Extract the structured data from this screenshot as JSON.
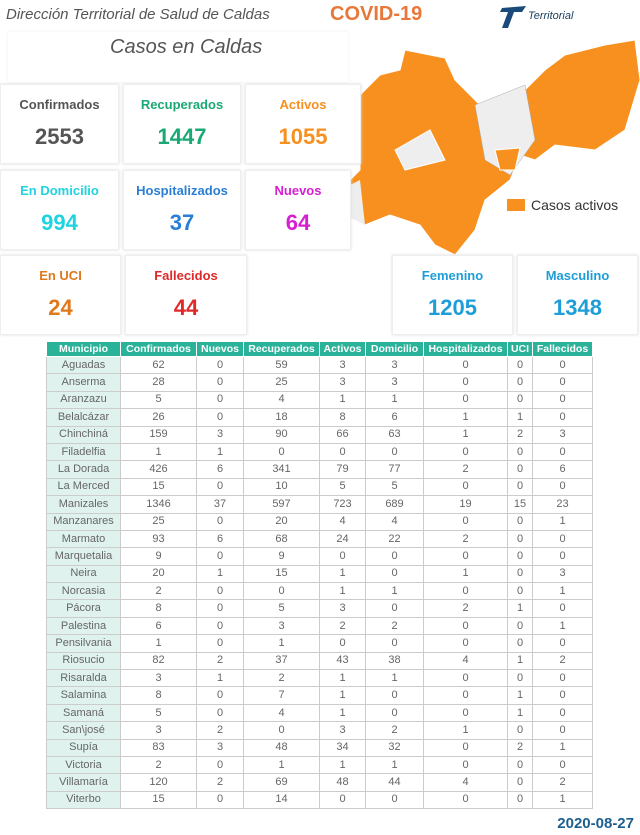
{
  "header": {
    "title": "Dirección Territorial de Salud de Caldas",
    "covid": "COVID-19",
    "logo_text": "Territorial"
  },
  "panel_title": "Casos en Caldas",
  "cards": {
    "confirmados": {
      "label": "Confirmados",
      "value": "2553",
      "color": "#555555"
    },
    "recuperados": {
      "label": "Recuperados",
      "value": "1447",
      "color": "#1aa874"
    },
    "activos": {
      "label": "Activos",
      "value": "1055",
      "color": "#f7901e"
    },
    "domicilio": {
      "label": "En Domicilio",
      "value": "994",
      "color": "#1fd3e0"
    },
    "hospitalizados": {
      "label": "Hospitalizados",
      "value": "37",
      "color": "#2a7fd4"
    },
    "nuevos": {
      "label": "Nuevos",
      "value": "64",
      "color": "#d61fd1"
    },
    "uci": {
      "label": "En UCI",
      "value": "24",
      "color": "#e0781c"
    },
    "fallecidos": {
      "label": "Fallecidos",
      "value": "44",
      "color": "#e02a2a"
    },
    "femenino": {
      "label": "Femenino",
      "value": "1205",
      "color": "#1e9ed8"
    },
    "masculino": {
      "label": "Masculino",
      "value": "1348",
      "color": "#1e9ed8"
    }
  },
  "map_legend": "Casos activos",
  "table": {
    "headers": [
      "Municipio",
      "Confirmados",
      "Nuevos",
      "Recuperados",
      "Activos",
      "Domicilio",
      "Hospitalizados",
      "UCI",
      "Fallecidos"
    ],
    "rows": [
      [
        "Aguadas",
        "62",
        "0",
        "59",
        "3",
        "3",
        "0",
        "0",
        "0"
      ],
      [
        "Anserma",
        "28",
        "0",
        "25",
        "3",
        "3",
        "0",
        "0",
        "0"
      ],
      [
        "Aranzazu",
        "5",
        "0",
        "4",
        "1",
        "1",
        "0",
        "0",
        "0"
      ],
      [
        "Belalcázar",
        "26",
        "0",
        "18",
        "8",
        "6",
        "1",
        "1",
        "0"
      ],
      [
        "Chinchiná",
        "159",
        "3",
        "90",
        "66",
        "63",
        "1",
        "2",
        "3"
      ],
      [
        "Filadelfia",
        "1",
        "1",
        "0",
        "0",
        "0",
        "0",
        "0",
        "0"
      ],
      [
        "La Dorada",
        "426",
        "6",
        "341",
        "79",
        "77",
        "2",
        "0",
        "6"
      ],
      [
        "La Merced",
        "15",
        "0",
        "10",
        "5",
        "5",
        "0",
        "0",
        "0"
      ],
      [
        "Manizales",
        "1346",
        "37",
        "597",
        "723",
        "689",
        "19",
        "15",
        "23"
      ],
      [
        "Manzanares",
        "25",
        "0",
        "20",
        "4",
        "4",
        "0",
        "0",
        "1"
      ],
      [
        "Marmato",
        "93",
        "6",
        "68",
        "24",
        "22",
        "2",
        "0",
        "0"
      ],
      [
        "Marquetalia",
        "9",
        "0",
        "9",
        "0",
        "0",
        "0",
        "0",
        "0"
      ],
      [
        "Neira",
        "20",
        "1",
        "15",
        "1",
        "0",
        "1",
        "0",
        "3"
      ],
      [
        "Norcasia",
        "2",
        "0",
        "0",
        "1",
        "1",
        "0",
        "0",
        "1"
      ],
      [
        "Pácora",
        "8",
        "0",
        "5",
        "3",
        "0",
        "2",
        "1",
        "0"
      ],
      [
        "Palestina",
        "6",
        "0",
        "3",
        "2",
        "2",
        "0",
        "0",
        "1"
      ],
      [
        "Pensilvania",
        "1",
        "0",
        "1",
        "0",
        "0",
        "0",
        "0",
        "0"
      ],
      [
        "Riosucio",
        "82",
        "2",
        "37",
        "43",
        "38",
        "4",
        "1",
        "2"
      ],
      [
        "Risaralda",
        "3",
        "1",
        "2",
        "1",
        "1",
        "0",
        "0",
        "0"
      ],
      [
        "Salamina",
        "8",
        "0",
        "7",
        "1",
        "0",
        "0",
        "1",
        "0"
      ],
      [
        "Samaná",
        "5",
        "0",
        "4",
        "1",
        "0",
        "0",
        "1",
        "0"
      ],
      [
        "San\\josé",
        "3",
        "2",
        "0",
        "3",
        "2",
        "1",
        "0",
        "0"
      ],
      [
        "Supía",
        "83",
        "3",
        "48",
        "34",
        "32",
        "0",
        "2",
        "1"
      ],
      [
        "Victoria",
        "2",
        "0",
        "1",
        "1",
        "1",
        "0",
        "0",
        "0"
      ],
      [
        "Villamaría",
        "120",
        "2",
        "69",
        "48",
        "44",
        "4",
        "0",
        "2"
      ],
      [
        "Viterbo",
        "15",
        "0",
        "14",
        "0",
        "0",
        "0",
        "0",
        "1"
      ]
    ]
  },
  "date": "2020-08-27"
}
